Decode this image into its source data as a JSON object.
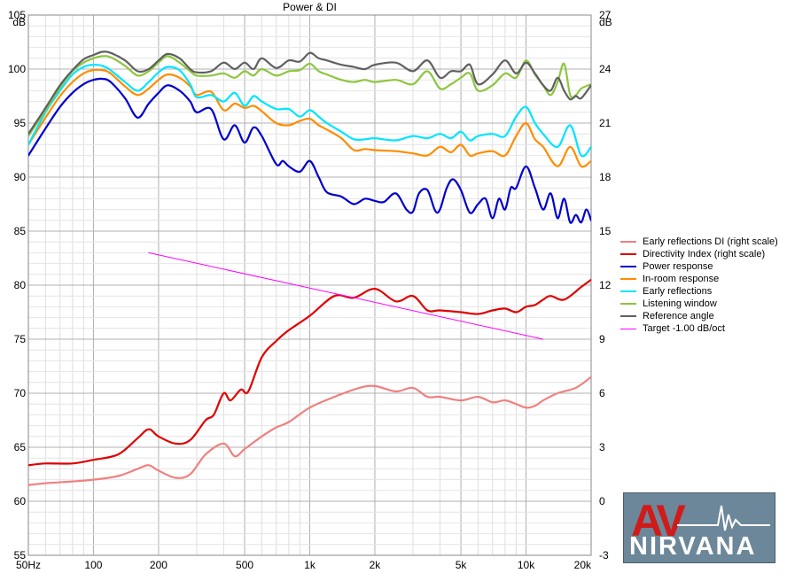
{
  "chart_data": {
    "type": "line",
    "title": "Power & DI",
    "left_unit": "dB",
    "right_unit": "dB",
    "x_scale": "log",
    "xlim": [
      50,
      20000
    ],
    "ylim_left": [
      55,
      105
    ],
    "ylim_right": [
      -3,
      27
    ],
    "x_tick_labels": [
      {
        "value": 50,
        "label": "50Hz"
      },
      {
        "value": 100,
        "label": "100"
      },
      {
        "value": 200,
        "label": "200"
      },
      {
        "value": 500,
        "label": "500"
      },
      {
        "value": 1000,
        "label": "1k"
      },
      {
        "value": 2000,
        "label": "2k"
      },
      {
        "value": 5000,
        "label": "5k"
      },
      {
        "value": 10000,
        "label": "10k"
      },
      {
        "value": 20000,
        "label": "20k"
      }
    ],
    "y_left_ticks": [
      55,
      60,
      65,
      70,
      75,
      80,
      85,
      90,
      95,
      100,
      105
    ],
    "y_right_ticks": [
      -3,
      0,
      3,
      6,
      9,
      12,
      15,
      18,
      21,
      24,
      27
    ],
    "grid": true,
    "legend_position": "right",
    "series": [
      {
        "name": "Early reflections DI (right scale)",
        "color": "#f08080",
        "axis": "right",
        "x": [
          50,
          60,
          80,
          100,
          130,
          160,
          180,
          200,
          240,
          280,
          330,
          400,
          450,
          500,
          600,
          700,
          800,
          1000,
          1300,
          1700,
          2000,
          2500,
          3000,
          3500,
          4000,
          5000,
          6000,
          7000,
          8000,
          9000,
          10000,
          11000,
          12000,
          14000,
          17000,
          20000
        ],
        "y": [
          0.9,
          1.0,
          1.1,
          1.2,
          1.4,
          1.8,
          2.0,
          1.7,
          1.3,
          1.5,
          2.6,
          3.2,
          2.5,
          2.9,
          3.6,
          4.1,
          4.4,
          5.2,
          5.8,
          6.3,
          6.4,
          6.1,
          6.3,
          5.8,
          5.8,
          5.6,
          5.8,
          5.5,
          5.6,
          5.4,
          5.2,
          5.3,
          5.6,
          6.0,
          6.3,
          6.9
        ]
      },
      {
        "name": "Directivity Index (right scale)",
        "color": "#e00000",
        "axis": "right",
        "x": [
          50,
          60,
          80,
          100,
          130,
          160,
          180,
          200,
          240,
          280,
          330,
          360,
          400,
          430,
          480,
          520,
          600,
          700,
          800,
          1000,
          1300,
          1600,
          2000,
          2500,
          3000,
          3500,
          4000,
          5000,
          6000,
          7000,
          8000,
          9000,
          10000,
          11000,
          12000,
          13000,
          15000,
          18000,
          20000
        ],
        "y": [
          2.0,
          2.1,
          2.1,
          2.3,
          2.6,
          3.5,
          4.0,
          3.6,
          3.2,
          3.4,
          4.5,
          4.8,
          6.0,
          5.6,
          6.2,
          6.1,
          8.0,
          8.9,
          9.5,
          10.3,
          11.4,
          11.3,
          11.8,
          11.1,
          11.4,
          10.6,
          10.6,
          10.5,
          10.4,
          10.6,
          10.7,
          10.5,
          10.8,
          10.9,
          11.2,
          11.4,
          11.2,
          11.9,
          12.3
        ]
      },
      {
        "name": "Power response",
        "color": "#0000cc",
        "axis": "left",
        "x": [
          50,
          60,
          70,
          80,
          90,
          100,
          110,
          120,
          140,
          160,
          180,
          200,
          220,
          250,
          280,
          300,
          350,
          400,
          450,
          500,
          550,
          600,
          700,
          750,
          800,
          900,
          1000,
          1100,
          1200,
          1400,
          1600,
          1800,
          2000,
          2200,
          2500,
          2800,
          3000,
          3200,
          3500,
          3800,
          4000,
          4300,
          4600,
          5000,
          5500,
          6000,
          6500,
          7000,
          7500,
          8000,
          8500,
          9000,
          10000,
          11000,
          12000,
          13000,
          14000,
          15000,
          16000,
          17000,
          18000,
          19000,
          20000
        ],
        "y": [
          92.0,
          94.5,
          96.5,
          97.8,
          98.6,
          99.0,
          99.1,
          98.8,
          97.3,
          95.5,
          96.8,
          97.8,
          98.5,
          98.0,
          97.0,
          96.0,
          96.3,
          93.5,
          94.8,
          93.2,
          94.6,
          93.8,
          91.2,
          91.5,
          91.0,
          90.5,
          91.5,
          90.0,
          88.6,
          88.2,
          87.5,
          88.0,
          87.8,
          87.7,
          88.5,
          87.0,
          86.8,
          88.5,
          88.8,
          86.9,
          87.0,
          89.0,
          89.8,
          88.8,
          86.7,
          87.5,
          88.0,
          86.2,
          88.0,
          87.0,
          89.0,
          89.0,
          91.0,
          89.0,
          87.0,
          88.5,
          86.2,
          88.0,
          85.8,
          86.5,
          85.8,
          87.0,
          86.0
        ]
      },
      {
        "name": "In-room response",
        "color": "#ff8c00",
        "axis": "left",
        "x": [
          50,
          60,
          70,
          80,
          90,
          100,
          110,
          120,
          140,
          160,
          180,
          200,
          220,
          250,
          280,
          300,
          350,
          400,
          450,
          500,
          550,
          600,
          700,
          800,
          900,
          1000,
          1100,
          1200,
          1400,
          1600,
          1800,
          2000,
          2500,
          3000,
          3500,
          4000,
          4500,
          5000,
          5500,
          6000,
          7000,
          8000,
          9000,
          10000,
          11000,
          12000,
          14000,
          16000,
          18000,
          20000
        ],
        "y": [
          93.0,
          95.5,
          97.5,
          98.8,
          99.6,
          99.9,
          99.9,
          99.6,
          98.4,
          97.6,
          98.2,
          99.0,
          99.5,
          99.2,
          98.4,
          97.6,
          97.9,
          96.2,
          96.8,
          96.4,
          96.6,
          96.1,
          95.0,
          94.8,
          95.2,
          95.4,
          94.8,
          94.4,
          93.6,
          92.5,
          92.6,
          92.5,
          92.4,
          92.2,
          92.0,
          92.8,
          92.3,
          93.0,
          92.0,
          92.2,
          92.4,
          92.0,
          93.8,
          95.0,
          93.5,
          92.8,
          91.0,
          92.8,
          91.0,
          91.5
        ]
      },
      {
        "name": "Early reflections",
        "color": "#00e5ff",
        "axis": "left",
        "x": [
          50,
          60,
          70,
          80,
          90,
          100,
          110,
          120,
          140,
          160,
          180,
          200,
          220,
          250,
          280,
          300,
          350,
          400,
          450,
          500,
          550,
          600,
          700,
          800,
          900,
          1000,
          1100,
          1200,
          1400,
          1600,
          1800,
          2000,
          2500,
          3000,
          3500,
          4000,
          4500,
          5000,
          5500,
          6000,
          7000,
          8000,
          9000,
          10000,
          11000,
          12000,
          14000,
          16000,
          18000,
          20000
        ],
        "y": [
          93.0,
          96.0,
          98.0,
          99.5,
          100.2,
          100.4,
          100.3,
          99.9,
          98.8,
          98.0,
          98.8,
          99.7,
          100.2,
          99.9,
          98.6,
          97.4,
          97.6,
          97.0,
          97.8,
          96.6,
          97.5,
          97.0,
          96.3,
          96.3,
          95.6,
          96.2,
          95.6,
          95.0,
          94.2,
          93.5,
          93.5,
          93.6,
          93.4,
          93.8,
          93.6,
          94.0,
          93.6,
          94.2,
          93.4,
          93.8,
          94.0,
          93.8,
          95.6,
          96.5,
          95.0,
          94.0,
          92.8,
          94.8,
          92.0,
          92.8
        ]
      },
      {
        "name": "Listening window",
        "color": "#8dc63f",
        "axis": "left",
        "x": [
          50,
          60,
          70,
          80,
          90,
          100,
          110,
          120,
          140,
          160,
          180,
          200,
          220,
          250,
          280,
          300,
          350,
          400,
          450,
          500,
          550,
          600,
          700,
          800,
          900,
          1000,
          1100,
          1200,
          1400,
          1600,
          1800,
          2000,
          2500,
          3000,
          3500,
          4000,
          4500,
          5000,
          5500,
          6000,
          7000,
          8000,
          9000,
          10000,
          11000,
          12000,
          13000,
          14000,
          15000,
          16000,
          17000,
          18000,
          20000
        ],
        "y": [
          93.8,
          96.2,
          98.3,
          99.8,
          100.6,
          101.0,
          101.2,
          101.1,
          100.3,
          99.4,
          99.8,
          100.6,
          101.2,
          100.6,
          99.8,
          99.4,
          99.4,
          99.6,
          99.2,
          99.8,
          99.4,
          100.0,
          99.4,
          99.8,
          99.9,
          100.5,
          99.8,
          99.5,
          99.0,
          98.8,
          99.0,
          98.8,
          99.0,
          98.6,
          99.8,
          98.2,
          98.6,
          99.2,
          99.6,
          98.0,
          98.5,
          99.6,
          99.2,
          100.8,
          99.5,
          98.5,
          97.6,
          98.8,
          100.5,
          97.6,
          97.6,
          98.2,
          98.6
        ]
      },
      {
        "name": "Reference angle",
        "color": "#606060",
        "axis": "left",
        "x": [
          50,
          60,
          70,
          80,
          90,
          100,
          110,
          120,
          140,
          160,
          180,
          200,
          220,
          250,
          280,
          300,
          350,
          400,
          450,
          500,
          550,
          600,
          700,
          800,
          900,
          1000,
          1100,
          1200,
          1400,
          1600,
          1800,
          2000,
          2500,
          3000,
          3500,
          4000,
          4500,
          5000,
          5500,
          6000,
          7000,
          8000,
          9000,
          10000,
          11000,
          12000,
          13000,
          14000,
          15000,
          16000,
          17000,
          18000,
          20000
        ],
        "y": [
          94.0,
          96.4,
          98.5,
          99.9,
          100.9,
          101.3,
          101.6,
          101.5,
          100.8,
          99.8,
          100.0,
          100.8,
          101.4,
          101.0,
          100.0,
          99.7,
          99.8,
          100.6,
          100.0,
          100.6,
          100.0,
          101.0,
          100.1,
          100.8,
          100.7,
          101.5,
          101.0,
          100.8,
          100.4,
          100.2,
          100.0,
          100.4,
          100.6,
          99.8,
          100.8,
          99.2,
          99.8,
          99.8,
          100.4,
          98.6,
          99.5,
          100.8,
          99.6,
          100.6,
          99.6,
          98.5,
          98.0,
          99.2,
          98.0,
          97.2,
          97.5,
          97.3,
          98.5
        ]
      },
      {
        "name": "Target -1.00 dB/oct",
        "color": "#ff00ff",
        "axis": "left",
        "x": [
          180,
          12000
        ],
        "y": [
          83.0,
          75.0
        ]
      }
    ]
  },
  "logo": {
    "top_text": "AV",
    "bottom_text": "NIRVANA",
    "accent": "#d11a1a"
  }
}
